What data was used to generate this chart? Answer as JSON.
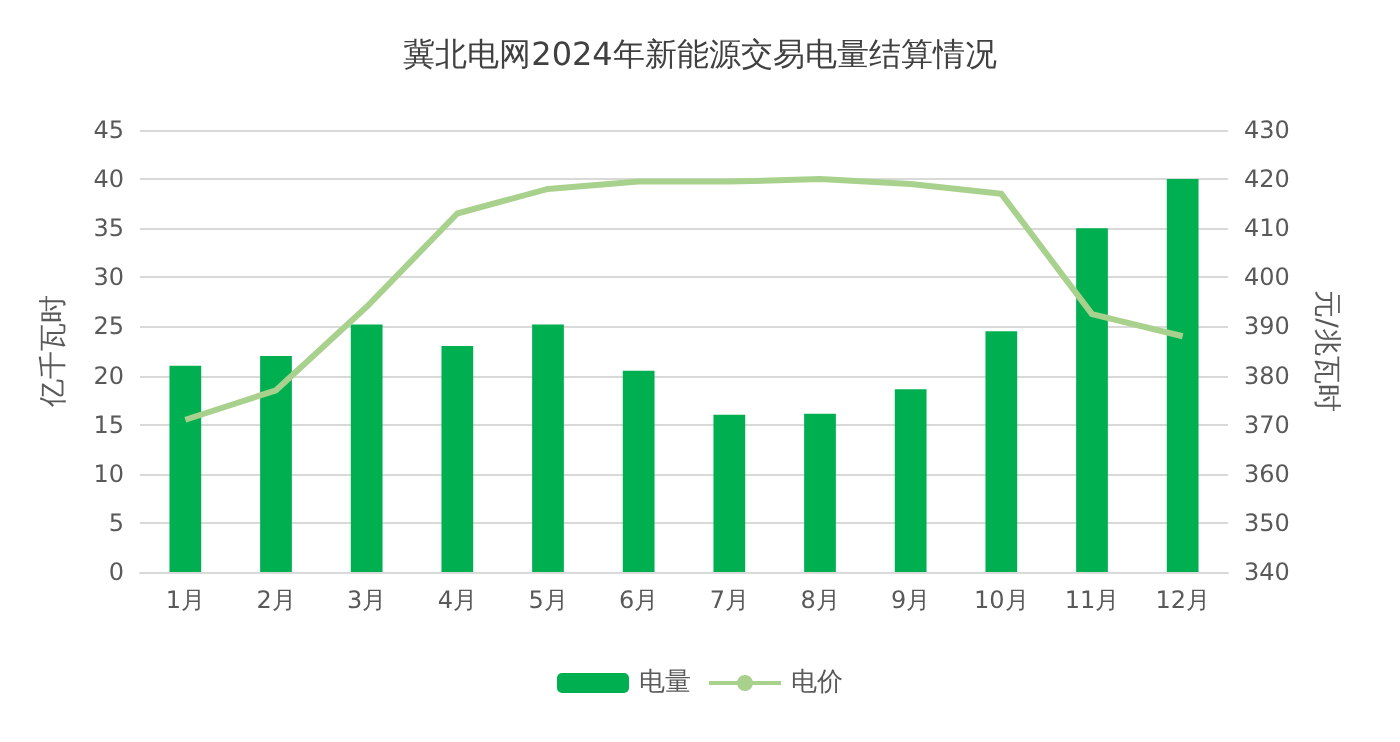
{
  "chart_data": {
    "type": "bar",
    "title": "冀北电网2024年新能源交易电量结算情况",
    "ylabel": "亿千瓦时",
    "y2label": "元/兆瓦时",
    "categories": [
      "1月",
      "2月",
      "3月",
      "4月",
      "5月",
      "6月",
      "7月",
      "8月",
      "9月",
      "10月",
      "11月",
      "12月"
    ],
    "series": [
      {
        "name": "电量",
        "color": "#00b050",
        "values": [
          21,
          22,
          25.2,
          23,
          25.2,
          20.5,
          16,
          16.1,
          18.6,
          24.5,
          35,
          40
        ]
      },
      {
        "name": "电价",
        "type": "line",
        "axis": "y2",
        "color": "#a9d18e",
        "values": [
          371,
          377,
          394,
          413,
          418,
          419.5,
          419.5,
          420,
          419,
          417,
          392.5,
          388
        ]
      }
    ],
    "ylim": [
      0,
      45
    ],
    "yticks": [
      0,
      5,
      10,
      15,
      20,
      25,
      30,
      35,
      40,
      45
    ],
    "y2lim": [
      340,
      430
    ],
    "y2ticks": [
      340,
      350,
      360,
      370,
      380,
      390,
      400,
      410,
      420,
      430
    ],
    "grid": "y",
    "legend": "bottom",
    "marker": "none",
    "line_style": "solid"
  }
}
